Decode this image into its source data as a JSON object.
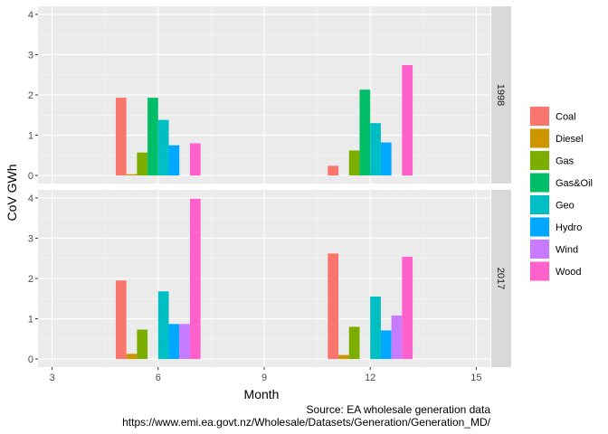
{
  "chart_data": {
    "type": "bar",
    "xlabel": "Month",
    "ylabel": "CoV GWh",
    "xlim": [
      2.6,
      15.4
    ],
    "ylim": [
      -0.2,
      4.2
    ],
    "x_ticks": [
      3,
      6,
      9,
      12,
      15
    ],
    "y_ticks": [
      0,
      1,
      2,
      3,
      4
    ],
    "grid": true,
    "legend_position": "right",
    "legend": [
      "Coal",
      "Diesel",
      "Gas",
      "Gas&Oil",
      "Geo",
      "Hydro",
      "Wind",
      "Wood"
    ],
    "colors": {
      "Coal": "#F8766D",
      "Diesel": "#CD9600",
      "Gas": "#7CAE00",
      "Gas&Oil": "#00BE67",
      "Geo": "#00BFC4",
      "Hydro": "#00A9FF",
      "Wind": "#C77CFF",
      "Wood": "#FF61CC"
    },
    "facets": [
      {
        "label": "1998",
        "groups": [
          {
            "x": 6,
            "bars": [
              {
                "fuel": "Coal",
                "value": 1.93
              },
              {
                "fuel": "Diesel",
                "value": 0.03
              },
              {
                "fuel": "Gas",
                "value": 0.57
              },
              {
                "fuel": "Gas&Oil",
                "value": 1.93
              },
              {
                "fuel": "Geo",
                "value": 1.38
              },
              {
                "fuel": "Hydro",
                "value": 0.75
              },
              {
                "fuel": "Wind",
                "value": null
              },
              {
                "fuel": "Wood",
                "value": 0.8
              }
            ]
          },
          {
            "x": 12,
            "bars": [
              {
                "fuel": "Coal",
                "value": 0.24
              },
              {
                "fuel": "Diesel",
                "value": null
              },
              {
                "fuel": "Gas",
                "value": 0.62
              },
              {
                "fuel": "Gas&Oil",
                "value": 2.13
              },
              {
                "fuel": "Geo",
                "value": 1.3
              },
              {
                "fuel": "Hydro",
                "value": 0.82
              },
              {
                "fuel": "Wind",
                "value": null
              },
              {
                "fuel": "Wood",
                "value": 2.74
              }
            ]
          }
        ]
      },
      {
        "label": "2017",
        "groups": [
          {
            "x": 6,
            "bars": [
              {
                "fuel": "Coal",
                "value": 1.95
              },
              {
                "fuel": "Diesel",
                "value": 0.13
              },
              {
                "fuel": "Gas",
                "value": 0.73
              },
              {
                "fuel": "Gas&Oil",
                "value": null
              },
              {
                "fuel": "Geo",
                "value": 1.68
              },
              {
                "fuel": "Hydro",
                "value": 0.87
              },
              {
                "fuel": "Wind",
                "value": 0.87
              },
              {
                "fuel": "Wood",
                "value": 3.98
              }
            ]
          },
          {
            "x": 12,
            "bars": [
              {
                "fuel": "Coal",
                "value": 2.62
              },
              {
                "fuel": "Diesel",
                "value": 0.1
              },
              {
                "fuel": "Gas",
                "value": 0.8
              },
              {
                "fuel": "Gas&Oil",
                "value": null
              },
              {
                "fuel": "Geo",
                "value": 1.55
              },
              {
                "fuel": "Hydro",
                "value": 0.71
              },
              {
                "fuel": "Wind",
                "value": 1.08
              },
              {
                "fuel": "Wood",
                "value": 2.54
              }
            ]
          }
        ]
      }
    ],
    "caption_lines": [
      "Source: EA wholesale generation data",
      "https://www.emi.ea.govt.nz/Wholesale/Datasets/Generation/Generation_MD/"
    ]
  }
}
